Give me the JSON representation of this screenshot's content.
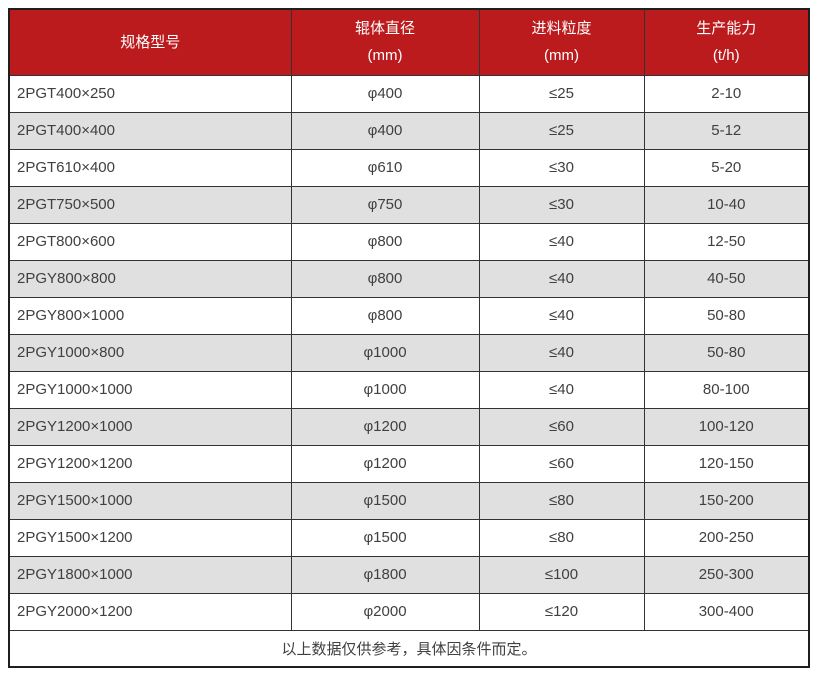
{
  "colors": {
    "header_bg": "#bb1b1d",
    "header_text": "#ffffff",
    "row_bg": "#ffffff",
    "row_alt_bg": "#e0e0e0",
    "border_inner": "#333333",
    "border_outer": "#1f1f1f",
    "text": "#404040"
  },
  "table": {
    "columns": [
      {
        "label_line1": "规格型号",
        "label_line2": ""
      },
      {
        "label_line1": "辊体直径",
        "label_line2": "(mm)"
      },
      {
        "label_line1": "进料粒度",
        "label_line2": "(mm)"
      },
      {
        "label_line1": "生产能力",
        "label_line2": "(t/h)"
      }
    ],
    "rows": [
      [
        "2PGT400×250",
        "φ400",
        "≤25",
        "2-10"
      ],
      [
        "2PGT400×400",
        "φ400",
        "≤25",
        "5-12"
      ],
      [
        "2PGT610×400",
        "φ610",
        "≤30",
        "5-20"
      ],
      [
        "2PGT750×500",
        "φ750",
        "≤30",
        "10-40"
      ],
      [
        "2PGT800×600",
        "φ800",
        "≤40",
        "12-50"
      ],
      [
        "2PGY800×800",
        "φ800",
        "≤40",
        "40-50"
      ],
      [
        "2PGY800×1000",
        "φ800",
        "≤40",
        "50-80"
      ],
      [
        "2PGY1000×800",
        "φ1000",
        "≤40",
        "50-80"
      ],
      [
        "2PGY1000×1000",
        "φ1000",
        "≤40",
        "80-100"
      ],
      [
        "2PGY1200×1000",
        "φ1200",
        "≤60",
        "100-120"
      ],
      [
        "2PGY1200×1200",
        "φ1200",
        "≤60",
        "120-150"
      ],
      [
        "2PGY1500×1000",
        "φ1500",
        "≤80",
        "150-200"
      ],
      [
        "2PGY1500×1200",
        "φ1500",
        "≤80",
        "200-250"
      ],
      [
        "2PGY1800×1000",
        "φ1800",
        "≤100",
        "250-300"
      ],
      [
        "2PGY2000×1200",
        "φ2000",
        "≤120",
        "300-400"
      ]
    ],
    "footnote": "以上数据仅供参考，具体因条件而定。"
  }
}
